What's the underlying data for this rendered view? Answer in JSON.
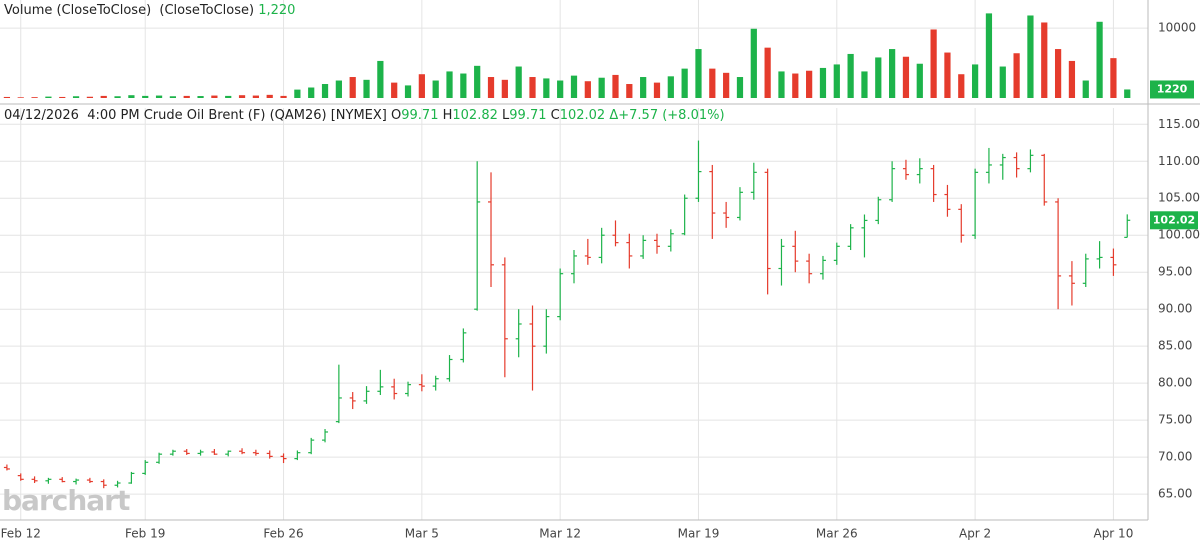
{
  "chart_data": [
    {
      "type": "bar",
      "title": "Volume (CloseToClose)  (CloseToClose)",
      "values": [
        150,
        100,
        120,
        200,
        150,
        250,
        180,
        300,
        250,
        400,
        300,
        350,
        250,
        300,
        280,
        350,
        300,
        400,
        350,
        450,
        300,
        1200,
        1500,
        2000,
        2500,
        3000,
        2600,
        5300,
        2200,
        1800,
        3400,
        2500,
        3800,
        3500,
        4600,
        3000,
        2600,
        4500,
        3000,
        2800,
        2500,
        3200,
        2400,
        2900,
        3300,
        2000,
        3000,
        2200,
        3100,
        4200,
        7000,
        4200,
        3600,
        3000,
        9900,
        7200,
        3800,
        3500,
        3900,
        4300,
        4800,
        6300,
        3800,
        5800,
        7000,
        5900,
        4900,
        9800,
        6500,
        3400,
        4800,
        12100,
        4500,
        6400,
        11800,
        10800,
        7000,
        5300,
        2500,
        10900,
        5700,
        1220
      ],
      "value_labels": [
        null,
        null,
        null,
        null,
        null,
        null,
        null,
        null,
        null,
        null,
        null,
        null,
        null,
        null,
        null,
        null,
        null,
        null,
        null,
        null,
        null,
        null,
        null,
        null,
        null,
        null,
        null,
        null,
        null,
        null,
        null,
        null,
        null,
        null,
        null,
        null,
        null,
        null,
        null,
        null,
        null,
        null,
        null,
        null,
        null,
        null,
        null,
        null,
        null,
        null,
        null,
        null,
        null,
        null,
        null,
        null,
        null,
        null,
        null,
        null,
        null,
        null,
        null,
        null,
        null,
        null,
        null,
        null,
        null,
        null,
        null,
        null,
        null,
        null,
        null,
        null,
        null,
        null,
        null,
        null,
        null,
        "1,220"
      ],
      "ylim": [
        0,
        13300
      ],
      "yticks": [
        10000
      ],
      "xlim": [
        -0.5,
        82.5
      ],
      "up_color": "#1db34a",
      "down_color": "#e53b2c"
    },
    {
      "type": "ohlc",
      "date": "04/12/2026",
      "time": "4:00 PM",
      "symbol": "Crude Oil Brent (F) (QAM26) [NYMEX]",
      "field_labels": [
        "O",
        "H",
        "L",
        "C"
      ],
      "change": "Δ+7.57 (+8.01%)",
      "open": [
        68.6,
        67.5,
        67.0,
        66.8,
        67.0,
        66.7,
        66.9,
        66.7,
        66.2,
        66.5,
        67.8,
        69.3,
        70.4,
        70.8,
        70.5,
        70.7,
        70.4,
        70.8,
        70.6,
        70.5,
        70.1,
        69.8,
        70.6,
        72.3,
        74.8,
        78.0,
        77.6,
        78.9,
        79.5,
        78.6,
        79.8,
        79.6,
        80.6,
        83.2,
        90.0,
        104.5,
        96.0,
        86.0,
        88.0,
        85.0,
        89.0,
        94.8,
        97.2,
        97.0,
        100.0,
        99.0,
        97.2,
        99.3,
        98.5,
        100.2,
        105.0,
        108.6,
        103.0,
        102.4,
        105.8,
        108.5,
        95.5,
        98.5,
        96.5,
        94.8,
        96.6,
        98.5,
        101.0,
        102.0,
        104.8,
        109.0,
        108.2,
        109.0,
        105.5,
        103.5,
        100.0,
        108.5,
        109.5,
        110.5,
        109.0,
        110.8,
        104.5,
        94.5,
        93.5,
        96.8,
        97.0,
        99.71
      ],
      "high": [
        69.0,
        67.8,
        67.4,
        67.2,
        67.3,
        67.1,
        67.2,
        67.0,
        66.8,
        68.0,
        69.6,
        70.6,
        71.0,
        71.1,
        71.0,
        71.1,
        70.9,
        71.2,
        71.0,
        70.9,
        70.5,
        70.9,
        72.6,
        73.8,
        82.5,
        78.8,
        79.6,
        81.8,
        80.6,
        80.2,
        81.2,
        81.0,
        83.8,
        87.4,
        110.0,
        108.5,
        97.0,
        90.0,
        90.5,
        90.0,
        95.5,
        98.0,
        99.5,
        101.0,
        102.0,
        100.2,
        100.0,
        100.2,
        100.8,
        105.5,
        112.8,
        109.5,
        104.5,
        106.5,
        109.8,
        109.0,
        99.5,
        100.6,
        97.5,
        97.2,
        99.0,
        101.5,
        102.8,
        105.2,
        110.0,
        110.2,
        110.4,
        109.5,
        106.8,
        104.2,
        109.0,
        111.8,
        111.0,
        111.2,
        111.6,
        111.0,
        105.0,
        96.5,
        97.5,
        99.2,
        98.2,
        102.82
      ],
      "low": [
        68.2,
        66.8,
        66.5,
        66.4,
        66.6,
        66.3,
        66.5,
        65.8,
        65.9,
        66.4,
        67.6,
        69.1,
        70.2,
        70.3,
        70.2,
        70.3,
        70.1,
        70.4,
        70.2,
        69.8,
        69.2,
        69.6,
        70.4,
        72.0,
        74.6,
        76.5,
        77.2,
        78.4,
        77.8,
        78.2,
        78.9,
        79.0,
        80.2,
        82.8,
        89.8,
        93.0,
        80.8,
        83.5,
        79.0,
        84.0,
        88.5,
        93.5,
        96.0,
        96.2,
        98.5,
        95.5,
        96.8,
        97.5,
        97.8,
        100.0,
        104.5,
        99.5,
        101.0,
        102.0,
        104.8,
        92.0,
        93.2,
        95.0,
        93.5,
        94.0,
        96.0,
        98.0,
        97.0,
        101.5,
        104.5,
        107.5,
        107.0,
        104.5,
        102.5,
        99.0,
        99.5,
        107.0,
        107.5,
        107.8,
        108.5,
        104.0,
        90.0,
        90.5,
        93.0,
        95.5,
        94.5,
        99.71
      ],
      "close": [
        68.4,
        67.0,
        66.8,
        67.0,
        66.7,
        66.9,
        66.7,
        66.2,
        66.5,
        67.8,
        69.3,
        70.4,
        70.8,
        70.5,
        70.7,
        70.4,
        70.8,
        70.6,
        70.5,
        70.1,
        69.8,
        70.6,
        72.3,
        73.4,
        78.0,
        77.6,
        78.9,
        79.5,
        78.6,
        79.8,
        79.6,
        80.6,
        83.2,
        86.8,
        104.5,
        96.0,
        86.0,
        88.0,
        85.0,
        89.0,
        94.8,
        97.2,
        97.0,
        100.0,
        99.0,
        97.2,
        99.3,
        98.5,
        100.2,
        105.0,
        108.6,
        103.0,
        102.4,
        105.8,
        108.5,
        95.5,
        98.5,
        96.5,
        94.8,
        96.6,
        98.5,
        101.0,
        102.0,
        104.8,
        109.0,
        108.2,
        109.0,
        105.5,
        103.5,
        100.0,
        108.5,
        109.5,
        110.5,
        109.0,
        110.8,
        104.5,
        94.5,
        93.5,
        96.8,
        97.0,
        96.0,
        102.02
      ],
      "ylim": [
        61.5,
        117.2
      ],
      "yticks": [
        {
          "value": 65,
          "label": "65.00"
        },
        {
          "value": 70,
          "label": "70.00"
        },
        {
          "value": 75,
          "label": "75.00"
        },
        {
          "value": 80,
          "label": "80.00"
        },
        {
          "value": 85,
          "label": "85.00"
        },
        {
          "value": 90,
          "label": "90.00"
        },
        {
          "value": 95,
          "label": "95.00"
        },
        {
          "value": 100,
          "label": "100.00"
        },
        {
          "value": 105,
          "label": "105.00"
        },
        {
          "value": 110,
          "label": "110.00"
        },
        {
          "value": 115,
          "label": "115.00"
        }
      ],
      "xlim": [
        -0.5,
        82.5
      ],
      "xticks": [
        {
          "value": 1,
          "label": "Feb 12"
        },
        {
          "value": 10,
          "label": "Feb 19"
        },
        {
          "value": 20,
          "label": "Feb 26"
        },
        {
          "value": 30,
          "label": "Mar 5"
        },
        {
          "value": 40,
          "label": "Mar 12"
        },
        {
          "value": 50,
          "label": "Mar 19"
        },
        {
          "value": 60,
          "label": "Mar 26"
        },
        {
          "value": 70,
          "label": "Apr 2"
        },
        {
          "value": 80,
          "label": "Apr 10"
        }
      ],
      "grid": true,
      "up_color": "#1db34a",
      "down_color": "#e53b2c"
    }
  ],
  "logo": "barchart"
}
